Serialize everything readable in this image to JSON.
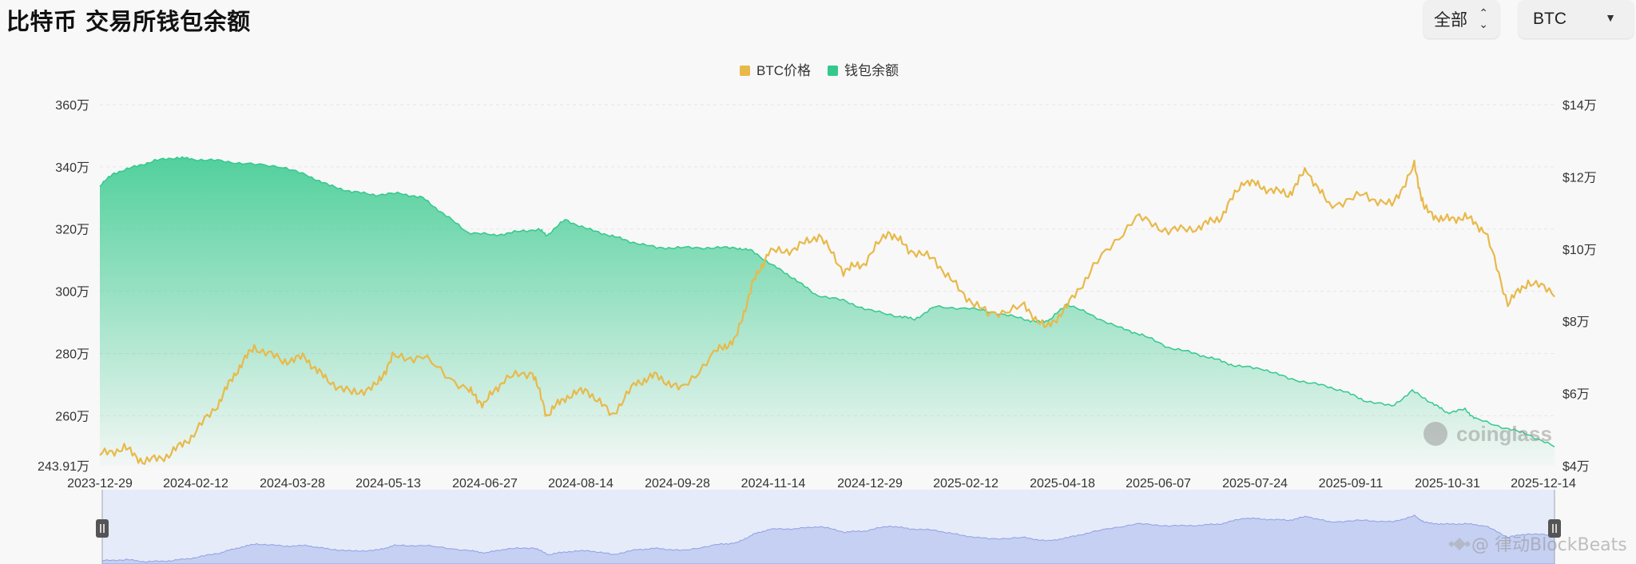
{
  "title": "比特币 交易所钱包余额",
  "controls": {
    "range_label": "全部",
    "coin_label": "BTC"
  },
  "watermarks": {
    "brand": "coinglass",
    "source": "@ 律动BlockBeats"
  },
  "colors": {
    "price": "#e8b94a",
    "balance": "#34c98c",
    "navigator": "#a9b9ee"
  },
  "chart_data": {
    "type": "area",
    "legend": [
      "BTC价格",
      "钱包余额"
    ],
    "legend_position": "top-center",
    "x_ticks": [
      "2023-12-29",
      "2024-02-12",
      "2024-03-28",
      "2024-05-13",
      "2024-06-27",
      "2024-08-14",
      "2024-09-28",
      "2024-11-14",
      "2024-12-29",
      "2025-02-12",
      "2025-04-18",
      "2025-06-07",
      "2025-07-24",
      "2025-09-11",
      "2025-10-31",
      "2025-12-14"
    ],
    "y_left": {
      "ticks": [
        "360万",
        "340万",
        "320万",
        "300万",
        "280万",
        "260万",
        "243.91万"
      ],
      "min": 2439100,
      "max": 3600000
    },
    "y_right": {
      "ticks": [
        "$14万",
        "$12万",
        "$10万",
        "$8万",
        "$6万",
        "$4万"
      ],
      "min": 40000,
      "max": 140000
    },
    "grid": true,
    "series": [
      {
        "name": "钱包余额",
        "kind": "area",
        "dates": [
          "2023-12-29",
          "2024-01-05",
          "2024-01-15",
          "2024-01-25",
          "2024-02-05",
          "2024-02-12",
          "2024-02-25",
          "2024-03-10",
          "2024-03-28",
          "2024-04-10",
          "2024-04-20",
          "2024-05-01",
          "2024-05-13",
          "2024-05-25",
          "2024-06-05",
          "2024-06-15",
          "2024-06-27",
          "2024-07-10",
          "2024-07-20",
          "2024-08-01",
          "2024-08-05",
          "2024-08-14",
          "2024-08-25",
          "2024-09-05",
          "2024-09-15",
          "2024-09-28",
          "2024-10-10",
          "2024-10-25",
          "2024-11-06",
          "2024-11-14",
          "2024-11-25",
          "2024-12-05",
          "2024-12-15",
          "2024-12-29",
          "2025-01-10",
          "2025-01-25",
          "2025-02-02",
          "2025-02-12",
          "2025-03-01",
          "2025-03-15",
          "2025-03-28",
          "2025-04-05",
          "2025-04-10",
          "2025-04-18",
          "2025-05-01",
          "2025-05-15",
          "2025-05-25",
          "2025-06-07",
          "2025-06-20",
          "2025-07-01",
          "2025-07-10",
          "2025-07-24",
          "2025-08-05",
          "2025-08-20",
          "2025-09-01",
          "2025-09-11",
          "2025-09-25",
          "2025-10-05",
          "2025-10-15",
          "2025-10-22",
          "2025-10-31",
          "2025-11-05",
          "2025-11-20",
          "2025-12-01",
          "2025-12-14",
          "2025-12-28"
        ],
        "values": [
          3340000,
          3380000,
          3400000,
          3420000,
          3430000,
          3425000,
          3420000,
          3410000,
          3400000,
          3370000,
          3340000,
          3320000,
          3310000,
          3315000,
          3300000,
          3250000,
          3190000,
          3180000,
          3190000,
          3200000,
          3180000,
          3230000,
          3200000,
          3180000,
          3160000,
          3140000,
          3140000,
          3140000,
          3140000,
          3130000,
          3080000,
          3040000,
          2990000,
          2970000,
          2940000,
          2920000,
          2910000,
          2950000,
          2945000,
          2930000,
          2910000,
          2900000,
          2910000,
          2960000,
          2920000,
          2880000,
          2860000,
          2820000,
          2800000,
          2780000,
          2760000,
          2750000,
          2720000,
          2700000,
          2680000,
          2650000,
          2630000,
          2680000,
          2640000,
          2610000,
          2620000,
          2590000,
          2560000,
          2540000,
          2500000,
          2480000
        ]
      },
      {
        "name": "BTC价格",
        "kind": "line",
        "dates": [
          "2023-12-29",
          "2024-01-10",
          "2024-01-20",
          "2024-02-01",
          "2024-02-12",
          "2024-02-25",
          "2024-03-05",
          "2024-03-14",
          "2024-03-28",
          "2024-04-08",
          "2024-04-18",
          "2024-05-01",
          "2024-05-13",
          "2024-05-21",
          "2024-06-05",
          "2024-06-27",
          "2024-07-05",
          "2024-07-15",
          "2024-07-29",
          "2024-08-05",
          "2024-08-14",
          "2024-08-25",
          "2024-09-06",
          "2024-09-18",
          "2024-09-28",
          "2024-10-10",
          "2024-10-28",
          "2024-11-06",
          "2024-11-14",
          "2024-11-22",
          "2024-12-05",
          "2024-12-17",
          "2024-12-29",
          "2025-01-08",
          "2025-01-20",
          "2025-01-30",
          "2025-02-12",
          "2025-02-25",
          "2025-03-10",
          "2025-03-28",
          "2025-04-08",
          "2025-04-18",
          "2025-05-01",
          "2025-05-22",
          "2025-06-07",
          "2025-06-22",
          "2025-07-03",
          "2025-07-14",
          "2025-07-24",
          "2025-08-05",
          "2025-08-14",
          "2025-08-25",
          "2025-09-11",
          "2025-09-25",
          "2025-10-06",
          "2025-10-11",
          "2025-10-20",
          "2025-10-31",
          "2025-11-10",
          "2025-11-21",
          "2025-12-01",
          "2025-12-14",
          "2025-12-28"
        ],
        "values": [
          43000,
          45000,
          41000,
          43000,
          48000,
          57000,
          66000,
          73000,
          69000,
          70000,
          64000,
          60000,
          62000,
          70000,
          70000,
          61000,
          57000,
          64000,
          66000,
          54000,
          59000,
          61000,
          54000,
          63000,
          65000,
          61000,
          72000,
          75000,
          90000,
          99000,
          100000,
          104000,
          94000,
          96000,
          105000,
          100000,
          97000,
          88000,
          82000,
          84000,
          78000,
          84000,
          95000,
          109000,
          105000,
          106000,
          109000,
          119000,
          117000,
          115000,
          122000,
          112000,
          115000,
          112000,
          123000,
          111000,
          108000,
          109000,
          105000,
          85000,
          91000,
          88000,
          88000
        ]
      }
    ],
    "navigator": {
      "range": [
        "2023-12-29",
        "2025-12-28"
      ]
    }
  }
}
